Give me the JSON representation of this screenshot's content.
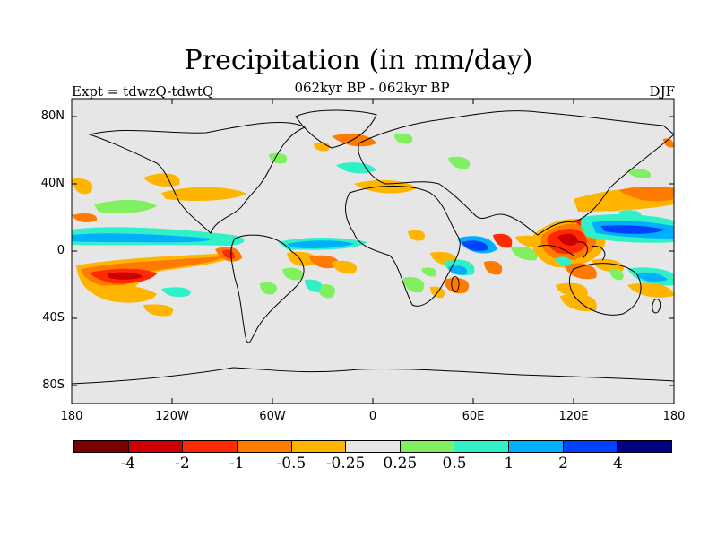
{
  "header": {
    "title": "Precipitation (in mm/day)",
    "left_label": "Expt = tdwzQ-tdwtQ",
    "center_label": "062kyr BP - 062kyr BP",
    "right_label": "DJF"
  },
  "axes": {
    "y_ticks": [
      "80N",
      "40N",
      "0",
      "40S",
      "80S"
    ],
    "x_ticks": [
      "180",
      "120W",
      "60W",
      "0",
      "60E",
      "120E",
      "180"
    ]
  },
  "colorbar": {
    "colors": [
      "#7a0000",
      "#cc0000",
      "#ff2a00",
      "#ff7a00",
      "#ffb400",
      "#e6e6e6",
      "#80f060",
      "#30f0c8",
      "#00b0ff",
      "#0040ff",
      "#000080"
    ],
    "labels": [
      "-4",
      "-2",
      "-1",
      "-0.5",
      "-0.25",
      "0.25",
      "0.5",
      "1",
      "2",
      "4"
    ]
  },
  "colors": {
    "background": "#e6e6e6",
    "coast": "#000000"
  }
}
